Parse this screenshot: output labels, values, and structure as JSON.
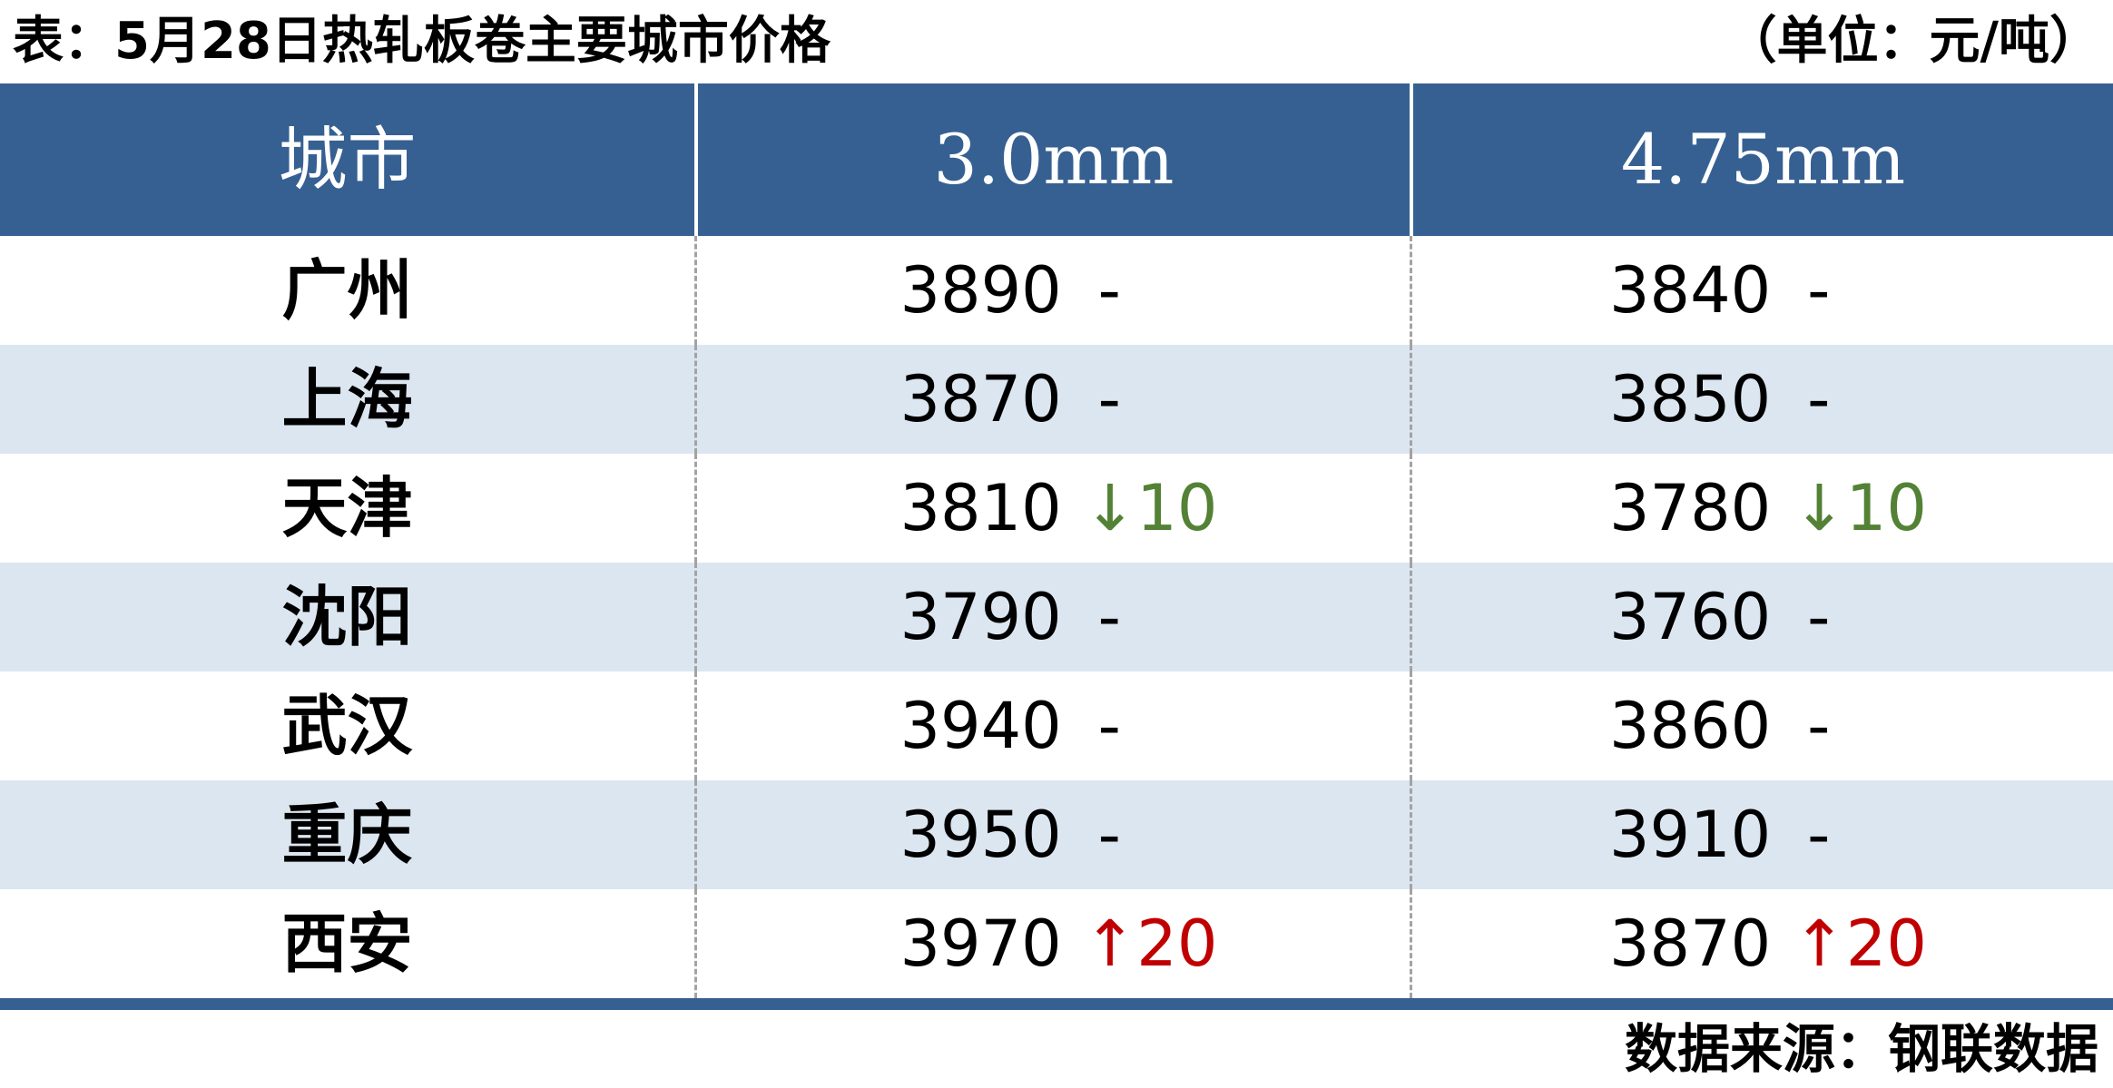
{
  "title": "表：5月28日热轧板卷主要城市价格",
  "unit_label": "（单位：元/吨）",
  "source_label": "数据来源：钢联数据",
  "colors": {
    "header_bg": "#366092",
    "alt_row_bg": "#dce6f0",
    "up_red": "#c00000",
    "down_green": "#538135",
    "bottom_rule": "#366092"
  },
  "arrows": {
    "up": "↑",
    "down": "↓"
  },
  "table": {
    "columns": [
      "城市",
      "3.0mm",
      "4.75mm"
    ],
    "rows": [
      {
        "city": "广州",
        "p30": {
          "price": "3890",
          "change": "-",
          "dir": "flat"
        },
        "p475": {
          "price": "3840",
          "change": "-",
          "dir": "flat"
        }
      },
      {
        "city": "上海",
        "p30": {
          "price": "3870",
          "change": "-",
          "dir": "flat"
        },
        "p475": {
          "price": "3850",
          "change": "-",
          "dir": "flat"
        }
      },
      {
        "city": "天津",
        "p30": {
          "price": "3810",
          "change": "10",
          "dir": "down"
        },
        "p475": {
          "price": "3780",
          "change": "10",
          "dir": "down"
        }
      },
      {
        "city": "沈阳",
        "p30": {
          "price": "3790",
          "change": "-",
          "dir": "flat"
        },
        "p475": {
          "price": "3760",
          "change": "-",
          "dir": "flat"
        }
      },
      {
        "city": "武汉",
        "p30": {
          "price": "3940",
          "change": "-",
          "dir": "flat"
        },
        "p475": {
          "price": "3860",
          "change": "-",
          "dir": "flat"
        }
      },
      {
        "city": "重庆",
        "p30": {
          "price": "3950",
          "change": "-",
          "dir": "flat"
        },
        "p475": {
          "price": "3910",
          "change": "-",
          "dir": "flat"
        }
      },
      {
        "city": "西安",
        "p30": {
          "price": "3970",
          "change": "20",
          "dir": "up"
        },
        "p475": {
          "price": "3870",
          "change": "20",
          "dir": "up"
        }
      }
    ]
  }
}
